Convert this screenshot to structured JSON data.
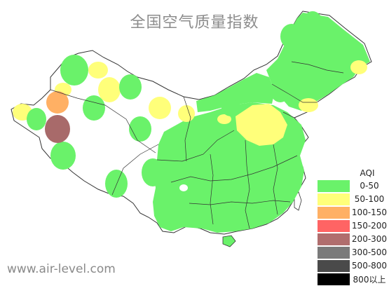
{
  "title": "全国空气质量指数",
  "website": "www.air-level.com",
  "legend": {
    "title": "AQI",
    "items": [
      {
        "label": "0-50",
        "color": "#6af26a"
      },
      {
        "label": "50-100",
        "color": "#ffff7a"
      },
      {
        "label": "100-150",
        "color": "#ffb064"
      },
      {
        "label": "150-200",
        "color": "#ff6464"
      },
      {
        "label": "200-300",
        "color": "#b06e6e"
      },
      {
        "label": "300-500",
        "color": "#7a7a7a"
      },
      {
        "label": "500-800",
        "color": "#4a4a4a"
      },
      {
        "label": "800以上",
        "color": "#000000"
      }
    ]
  },
  "colors": {
    "good": "#6af26a",
    "moderate": "#ffff7a",
    "sensitive": "#ffb064",
    "heavy": "#a86a6a",
    "border": "#333333",
    "land": "#ffffff"
  }
}
